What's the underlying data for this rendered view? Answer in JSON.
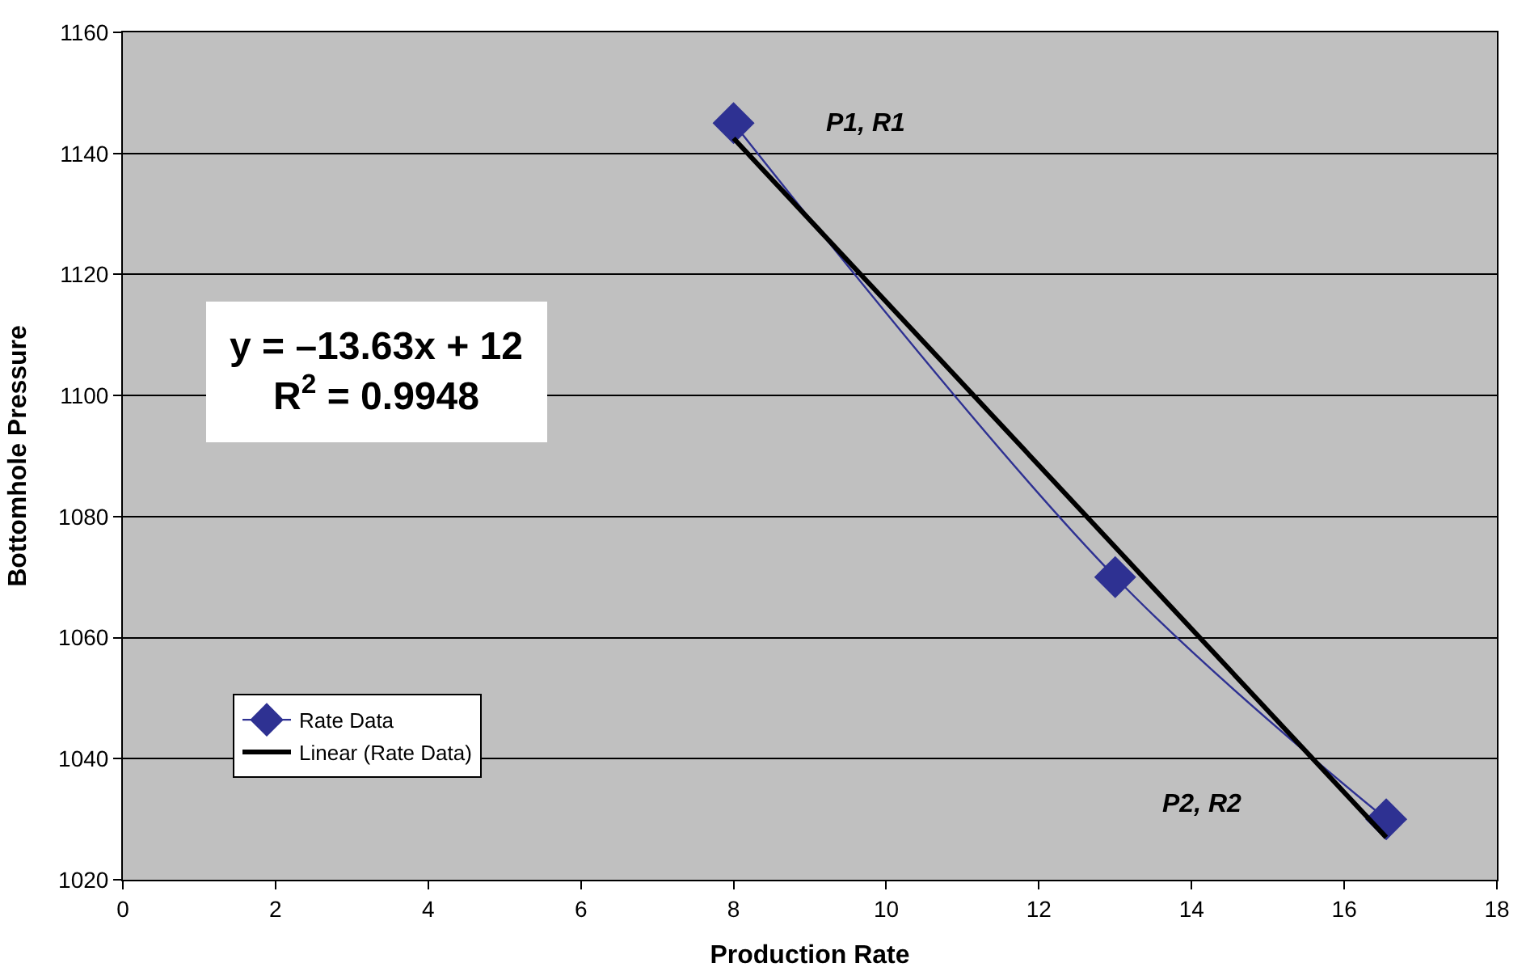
{
  "chart_data": {
    "type": "line",
    "xlabel": "Production Rate",
    "ylabel": "Bottomhole Pressure",
    "series": [
      {
        "name": "Rate Data",
        "color": "#2e3192",
        "x": [
          8,
          13,
          16.55
        ],
        "values": [
          1145,
          1070,
          1030
        ],
        "marker": "diamond"
      },
      {
        "name": "Linear (Rate Data)",
        "color": "#000000",
        "x": [
          8,
          16.55
        ],
        "values": [
          1142.5,
          1027
        ],
        "marker": "none"
      }
    ],
    "xlim": [
      0,
      18
    ],
    "xticks": [
      0,
      2,
      4,
      6,
      8,
      10,
      12,
      14,
      16,
      18
    ],
    "ylim": [
      1020,
      1160
    ],
    "yticks": [
      1020,
      1040,
      1060,
      1080,
      1100,
      1120,
      1140,
      1160
    ],
    "grid": "y",
    "legend": "bottom left",
    "annotations": [
      "P1, R1",
      "P2, R2",
      "y = –13.63x + 12\nR$^{2}$ = 0.9948"
    ]
  }
}
